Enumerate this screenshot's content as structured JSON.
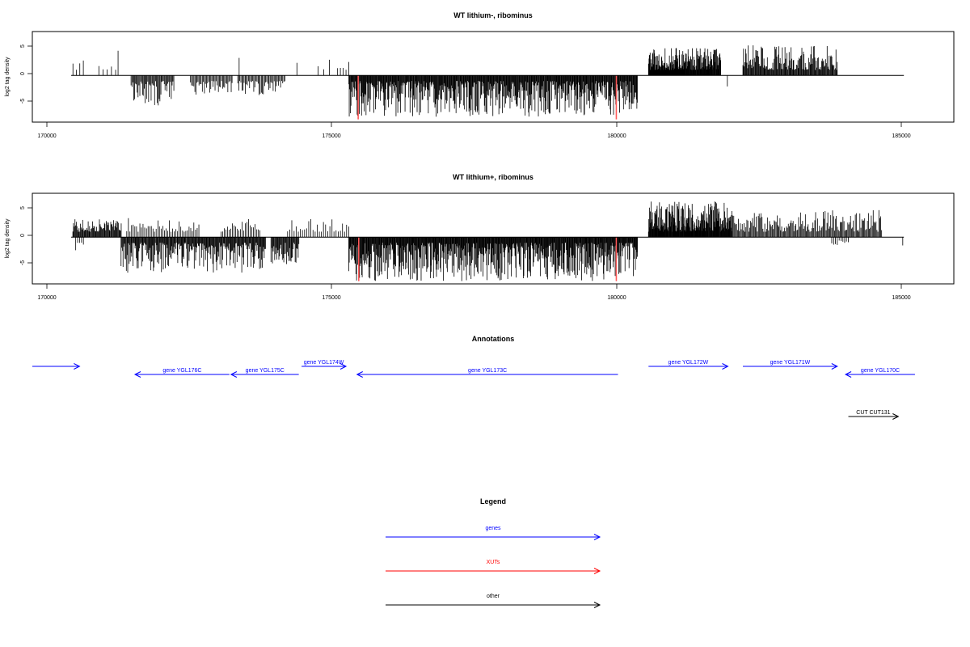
{
  "chart_data": [
    {
      "type": "bar",
      "title": "WT lithium-, ribominus",
      "ylabel": "log2 tag density",
      "xlim": [
        169600,
        186200
      ],
      "ylim": [
        -8.5,
        8.0
      ],
      "xticks": [
        170000,
        175000,
        180000,
        185000
      ],
      "xtick_labels": [
        "170000",
        "175000",
        "180000",
        "185000"
      ],
      "yticks": [
        5,
        0,
        -5
      ],
      "ytick_labels": [
        "5",
        "0",
        "-5"
      ],
      "baseline": {
        "start": 170300,
        "end": 185300
      },
      "segments": [
        {
          "start": 170330,
          "end": 170520,
          "count": 4,
          "min": 1.0,
          "max": 3.5,
          "seed": 11
        },
        {
          "start": 170800,
          "end": 171100,
          "count": 5,
          "min": 1.0,
          "max": 3.0,
          "seed": 12
        },
        {
          "start": 171130,
          "end": 171160,
          "count": 1,
          "min": 4.5,
          "max": 4.5,
          "seed": 13
        },
        {
          "start": 173300,
          "end": 173350,
          "count": 1,
          "min": 3.2,
          "max": 3.2,
          "seed": 14
        },
        {
          "start": 174350,
          "end": 174380,
          "count": 1,
          "min": 2.3,
          "max": 2.3,
          "seed": 15
        },
        {
          "start": 174750,
          "end": 174950,
          "count": 3,
          "min": 1.0,
          "max": 3.2,
          "seed": 16
        },
        {
          "start": 175100,
          "end": 175300,
          "count": 5,
          "min": 1.0,
          "max": 2.5,
          "seed": 17
        },
        {
          "start": 180700,
          "end": 182000,
          "count": 180,
          "min": 1.0,
          "max": 5.0,
          "seed": 18
        },
        {
          "start": 182400,
          "end": 184100,
          "count": 140,
          "min": 1.0,
          "max": 5.5,
          "seed": 19
        },
        {
          "start": 171380,
          "end": 172150,
          "count": 50,
          "min": -5.5,
          "max": -1.0,
          "seed": 21
        },
        {
          "start": 172450,
          "end": 173200,
          "count": 40,
          "min": -3.5,
          "max": -1.0,
          "seed": 22
        },
        {
          "start": 173300,
          "end": 174150,
          "count": 45,
          "min": -3.8,
          "max": -1.0,
          "seed": 23
        },
        {
          "start": 175300,
          "end": 180500,
          "count": 520,
          "min": -7.5,
          "max": -1.0,
          "seed": 24
        }
      ],
      "single_values": [
        {
          "x": 182120,
          "y": -2.0
        }
      ],
      "highlights": [
        {
          "x": 175470,
          "y": -8.0,
          "color": "#ff5a5a"
        },
        {
          "x": 180120,
          "y": -8.0,
          "color": "#ff5a5a"
        }
      ]
    },
    {
      "type": "bar",
      "title": "WT lithium+, ribominus",
      "ylabel": "log2 tag density",
      "xlim": [
        169600,
        186200
      ],
      "ylim": [
        -8.5,
        8.0
      ],
      "xticks": [
        170000,
        175000,
        180000,
        185000
      ],
      "xtick_labels": [
        "170000",
        "175000",
        "180000",
        "185000"
      ],
      "yticks": [
        5,
        0,
        -5
      ],
      "ytick_labels": [
        "5",
        "0",
        "-5"
      ],
      "baseline": {
        "start": 170300,
        "end": 185300
      },
      "segments": [
        {
          "start": 170330,
          "end": 171200,
          "count": 70,
          "min": 1.0,
          "max": 3.5,
          "seed": 31
        },
        {
          "start": 171300,
          "end": 172600,
          "count": 45,
          "min": 1.0,
          "max": 3.5,
          "seed": 32
        },
        {
          "start": 173000,
          "end": 173700,
          "count": 25,
          "min": 1.0,
          "max": 3.5,
          "seed": 33
        },
        {
          "start": 174200,
          "end": 175300,
          "count": 30,
          "min": 1.0,
          "max": 3.3,
          "seed": 34
        },
        {
          "start": 180700,
          "end": 182200,
          "count": 230,
          "min": 1.0,
          "max": 6.5,
          "seed": 35
        },
        {
          "start": 182200,
          "end": 184900,
          "count": 160,
          "min": 1.0,
          "max": 5.0,
          "seed": 36
        },
        {
          "start": 170380,
          "end": 170520,
          "count": 5,
          "min": -2.5,
          "max": -1.0,
          "seed": 41
        },
        {
          "start": 171200,
          "end": 173800,
          "count": 220,
          "min": -6.5,
          "max": -1.0,
          "seed": 42
        },
        {
          "start": 173900,
          "end": 174400,
          "count": 40,
          "min": -5.0,
          "max": -1.0,
          "seed": 43
        },
        {
          "start": 175300,
          "end": 180500,
          "count": 560,
          "min": -8.0,
          "max": -1.0,
          "seed": 44
        },
        {
          "start": 184000,
          "end": 184300,
          "count": 10,
          "min": -1.5,
          "max": -0.5,
          "seed": 45
        }
      ],
      "single_values": [
        {
          "x": 185280,
          "y": -1.5
        }
      ],
      "highlights": [
        {
          "x": 175480,
          "y": -8.0,
          "color": "#ff5a5a"
        },
        {
          "x": 180120,
          "y": -8.0,
          "color": "#ff5a5a"
        }
      ]
    }
  ],
  "annotations": {
    "title": "Annotations",
    "xlim": [
      169600,
      186200
    ],
    "arrows": [
      {
        "label": "",
        "start": 169600,
        "end": 170450,
        "row": "upper",
        "color": "#0000ff"
      },
      {
        "label": "gene YGL176C",
        "start": 173150,
        "end": 171450,
        "row": "lower",
        "color": "#0000ff"
      },
      {
        "label": "gene YGL175C",
        "start": 174400,
        "end": 173180,
        "row": "lower",
        "color": "#0000ff"
      },
      {
        "label": "gene YGL174W",
        "start": 174450,
        "end": 175250,
        "row": "upper",
        "color": "#0000ff"
      },
      {
        "label": "gene YGL173C",
        "start": 180150,
        "end": 175450,
        "row": "lower",
        "color": "#0000ff"
      },
      {
        "label": "gene YGL172W",
        "start": 180700,
        "end": 182130,
        "row": "upper",
        "color": "#0000ff"
      },
      {
        "label": "gene YGL171W",
        "start": 182400,
        "end": 184100,
        "row": "upper",
        "color": "#0000ff"
      },
      {
        "label": "gene YGL170C",
        "start": 185500,
        "end": 184250,
        "row": "lower",
        "color": "#0000ff"
      },
      {
        "label": "CUT CUT131",
        "start": 184300,
        "end": 185200,
        "row": "cut",
        "color": "#000000"
      }
    ]
  },
  "legend": {
    "title": "Legend",
    "items": [
      {
        "label": "genes",
        "color": "#0000ff"
      },
      {
        "label": "XUTs",
        "color": "#ff0000"
      },
      {
        "label": "other",
        "color": "#000000"
      }
    ]
  }
}
